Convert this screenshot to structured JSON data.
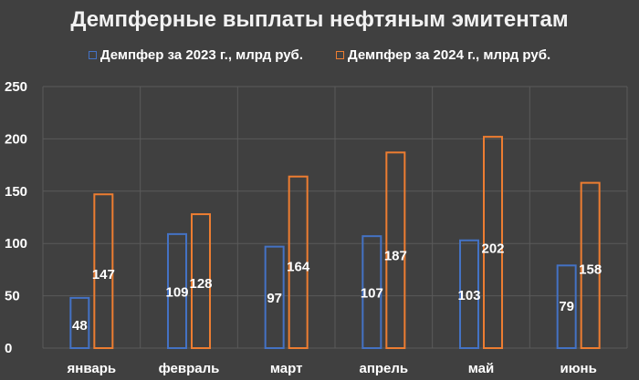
{
  "chart_data": {
    "type": "bar",
    "title": "Демпферные выплаты нефтяным эмитентам",
    "categories": [
      "январь",
      "февраль",
      "март",
      "апрель",
      "май",
      "июнь"
    ],
    "series": [
      {
        "name": "Демпфер за 2023 г., млрд руб.",
        "color": "#4472c4",
        "values": [
          48,
          109,
          97,
          107,
          103,
          79
        ]
      },
      {
        "name": "Демпфер за 2024 г., млрд руб.",
        "color": "#ed7d31",
        "values": [
          147,
          128,
          164,
          187,
          202,
          158
        ]
      }
    ],
    "ylim": [
      0,
      250
    ],
    "yticks": [
      0,
      50,
      100,
      150,
      200,
      250
    ],
    "grid": true,
    "legend_position": "top"
  }
}
